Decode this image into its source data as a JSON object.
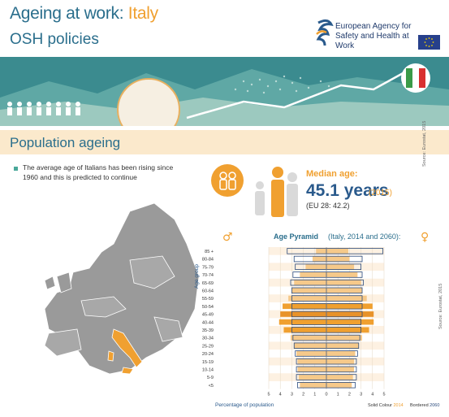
{
  "header": {
    "title_prefix": "Ageing at work: ",
    "title_country": "Italy",
    "subtitle": "OSH policies",
    "agency_name": "European Agency for Safety and Health at Work"
  },
  "section": {
    "title": "Population ageing"
  },
  "bullet": "The average age of Italians has been rising since 1960 and this is predicted to continue",
  "median": {
    "label": "Median age:",
    "value": "45.1 years",
    "year": "(2015)",
    "eu": "(EU 28: 42.2)",
    "source": "Source: Eurostat, 2015"
  },
  "pyramid_source": "Source: Eurostat, 2015",
  "colors": {
    "accent": "#f0a030",
    "primary": "#2a6e8c",
    "bar_solid": "#f0a030",
    "bar_outline": "#2a4a7c",
    "highlight": "#e8922a"
  },
  "chart_data": {
    "type": "bar",
    "title": "Age Pyramid",
    "title_note": "(Italy, 2014 and 2060):",
    "ylabel": "Age group",
    "xlabel": "Percentage of population",
    "male_symbol": "♂",
    "female_symbol": "♀",
    "categories": [
      "85 +",
      "80-84",
      "75-79",
      "70-74",
      "65-69",
      "60-64",
      "55-59",
      "50-54",
      "45-49",
      "40-44",
      "35-39",
      "30-34",
      "25-29",
      "20-24",
      "15-19",
      "10-14",
      "5-9",
      "<5"
    ],
    "xticks": [
      "5",
      "4",
      "3",
      "2",
      "1",
      "0",
      "1",
      "2",
      "3",
      "4",
      "5"
    ],
    "xlim": [
      -5,
      5
    ],
    "legend": {
      "solid_label": "Solid Colour",
      "solid_year": "2014",
      "outline_label": "Bordered",
      "outline_year": "2060"
    },
    "series": [
      {
        "name": "2014",
        "side": "male",
        "values": [
          0.9,
          1.2,
          1.8,
          2.3,
          2.8,
          3.0,
          3.3,
          3.8,
          4.0,
          4.1,
          3.7,
          3.1,
          2.8,
          2.6,
          2.5,
          2.5,
          2.4,
          2.3
        ]
      },
      {
        "name": "2014",
        "side": "female",
        "values": [
          1.9,
          2.0,
          2.4,
          2.7,
          3.0,
          3.1,
          3.5,
          4.0,
          4.1,
          4.1,
          3.7,
          3.1,
          2.8,
          2.5,
          2.4,
          2.4,
          2.3,
          2.2
        ]
      },
      {
        "name": "2060",
        "side": "male",
        "values": [
          3.4,
          2.8,
          2.7,
          2.9,
          3.1,
          3.0,
          3.0,
          3.0,
          3.0,
          3.0,
          3.0,
          2.9,
          2.8,
          2.7,
          2.6,
          2.6,
          2.6,
          2.5
        ]
      },
      {
        "name": "2060",
        "side": "female",
        "values": [
          4.9,
          3.1,
          3.0,
          3.1,
          3.2,
          3.1,
          3.1,
          3.1,
          3.1,
          3.0,
          3.0,
          2.9,
          2.8,
          2.7,
          2.6,
          2.6,
          2.6,
          2.5
        ]
      }
    ],
    "highlight_category": "45-49"
  }
}
